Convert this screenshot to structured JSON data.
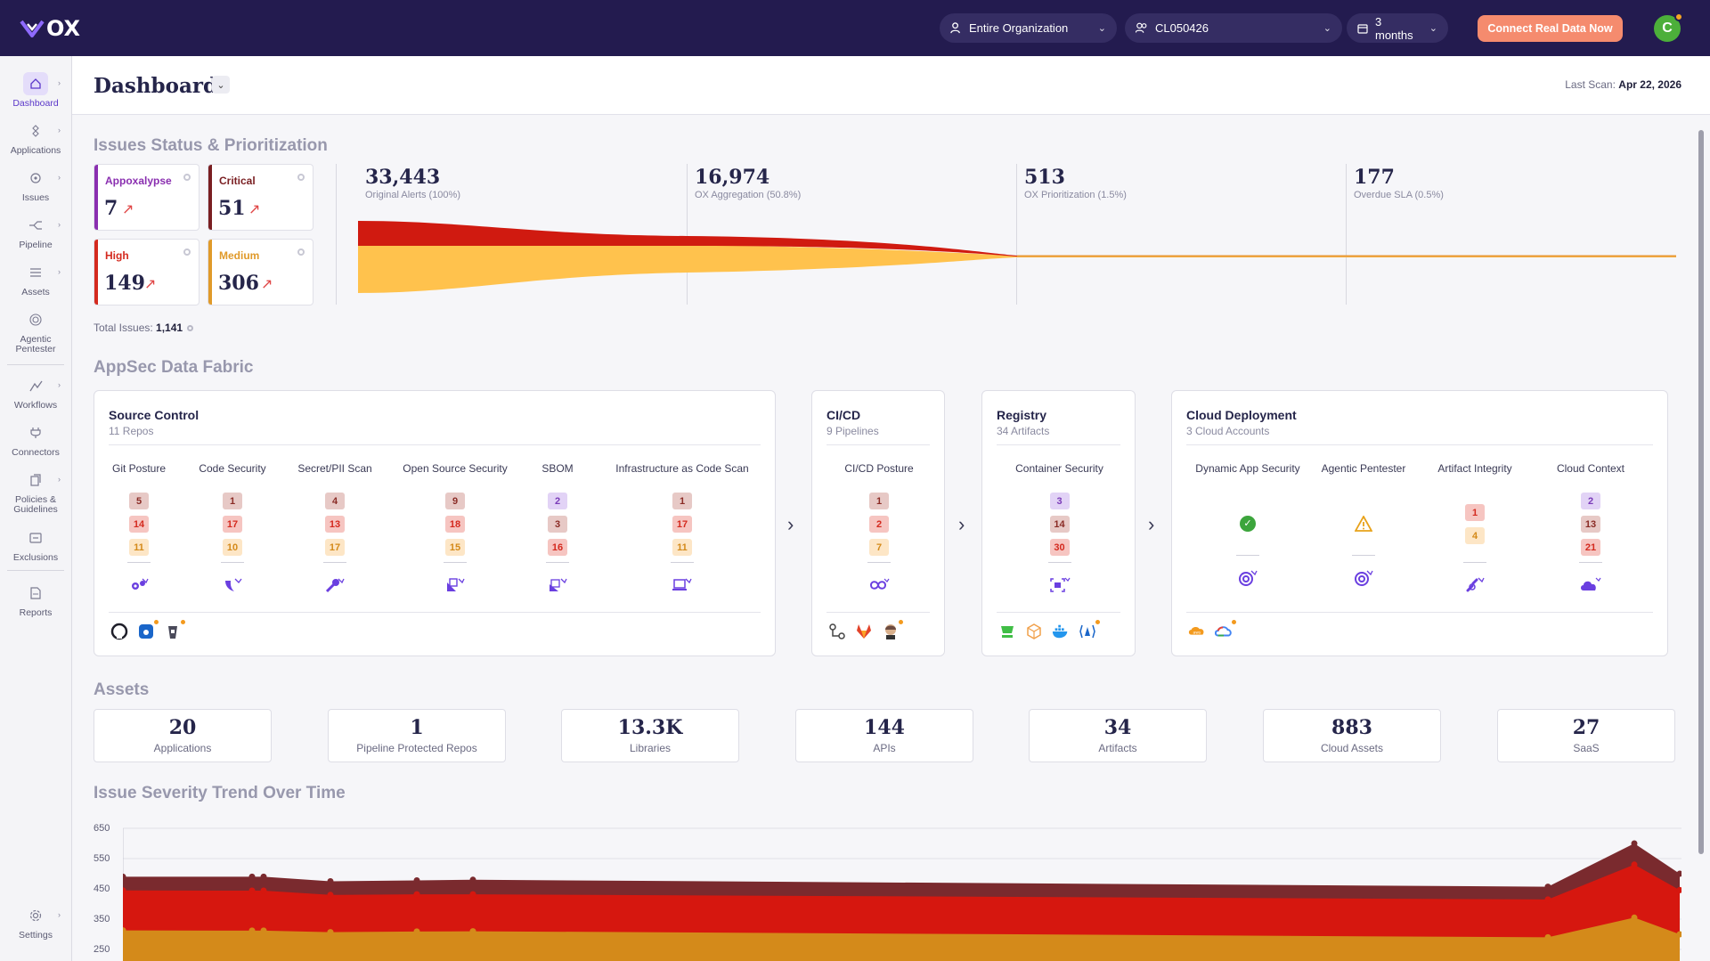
{
  "app": {
    "logo": "OX"
  },
  "topbar": {
    "org_select": "Entire Organization",
    "repo_select": "CL050426",
    "period_select": "3 months",
    "connect_button": "Connect Real Data Now",
    "avatar_initial": "C"
  },
  "sidebar": {
    "items": [
      {
        "label": "Dashboard",
        "icon": "home-icon",
        "active": true
      },
      {
        "label": "Applications",
        "icon": "applications-icon"
      },
      {
        "label": "Issues",
        "icon": "issues-icon"
      },
      {
        "label": "Pipeline",
        "icon": "pipeline-icon"
      },
      {
        "label": "Assets",
        "icon": "assets-icon"
      },
      {
        "label": "Agentic Pentester",
        "icon": "target-icon"
      },
      {
        "label": "Workflows",
        "icon": "workflows-icon"
      },
      {
        "label": "Connectors",
        "icon": "plug-icon"
      },
      {
        "label": "Policies & Guidelines",
        "icon": "policies-icon"
      },
      {
        "label": "Exclusions",
        "icon": "exclusions-icon"
      },
      {
        "label": "Reports",
        "icon": "reports-icon"
      },
      {
        "label": "Settings",
        "icon": "gear-icon"
      }
    ]
  },
  "header": {
    "title": "Dashboard",
    "last_scan_label": "Last Scan:",
    "last_scan_date": "Apr 22, 2026"
  },
  "issues": {
    "section_title": "Issues Status & Prioritization",
    "cards": [
      {
        "name": "Appoxalypse",
        "value": "7",
        "color": "#8a2fb0"
      },
      {
        "name": "Critical",
        "value": "51",
        "color": "#7a1f22"
      },
      {
        "name": "High",
        "value": "149",
        "color": "#d42a1f"
      },
      {
        "name": "Medium",
        "value": "306",
        "color": "#e09a2a"
      }
    ],
    "total_label": "Total Issues:",
    "total_value": "1,141",
    "funnel": [
      {
        "value": "33,443",
        "label": "Original Alerts (100%)"
      },
      {
        "value": "16,974",
        "label": "OX Aggregation (50.8%)"
      },
      {
        "value": "513",
        "label": "OX Prioritization (1.5%)"
      },
      {
        "value": "177",
        "label": "Overdue SLA (0.5%)"
      }
    ]
  },
  "fabric": {
    "section_title": "AppSec Data Fabric",
    "source_control": {
      "title": "Source Control",
      "subtitle": "11 Repos",
      "columns": [
        {
          "label": "Git Posture",
          "counts": [
            "5",
            "14",
            "11"
          ]
        },
        {
          "label": "Code Security",
          "counts": [
            "1",
            "17",
            "10"
          ]
        },
        {
          "label": "Secret/PII Scan",
          "counts": [
            "4",
            "13",
            "17"
          ]
        },
        {
          "label": "Open Source Security",
          "counts": [
            "9",
            "18",
            "15"
          ]
        },
        {
          "label": "SBOM",
          "counts": [
            "2",
            "3",
            "16"
          ]
        },
        {
          "label": "Infrastructure as Code Scan",
          "counts": [
            "1",
            "17",
            "11"
          ]
        }
      ]
    },
    "cicd": {
      "title": "CI/CD",
      "subtitle": "9 Pipelines",
      "columns": [
        {
          "label": "CI/CD Posture",
          "counts": [
            "1",
            "2",
            "7"
          ]
        }
      ]
    },
    "registry": {
      "title": "Registry",
      "subtitle": "34 Artifacts",
      "columns": [
        {
          "label": "Container Security",
          "counts": [
            "3",
            "14",
            "30"
          ]
        }
      ]
    },
    "cloud": {
      "title": "Cloud Deployment",
      "subtitle": "3 Cloud Accounts",
      "columns": [
        {
          "label": "Dynamic App Security",
          "counts": []
        },
        {
          "label": "Agentic Pentester",
          "counts": []
        },
        {
          "label": "Artifact Integrity",
          "counts": [
            "1",
            "4"
          ]
        },
        {
          "label": "Cloud Context",
          "counts": [
            "2",
            "13",
            "21"
          ]
        }
      ]
    }
  },
  "assets": {
    "section_title": "Assets",
    "items": [
      {
        "value": "20",
        "label": "Applications"
      },
      {
        "value": "1",
        "label": "Pipeline Protected Repos"
      },
      {
        "value": "13.3K",
        "label": "Libraries"
      },
      {
        "value": "144",
        "label": "APIs"
      },
      {
        "value": "34",
        "label": "Artifacts"
      },
      {
        "value": "883",
        "label": "Cloud Assets"
      },
      {
        "value": "27",
        "label": "SaaS"
      }
    ]
  },
  "trend": {
    "section_title": "Issue Severity Trend Over Time",
    "y_ticks": [
      "650",
      "550",
      "450",
      "350",
      "250"
    ]
  },
  "chart_data": {
    "type": "area",
    "title": "Issue Severity Trend Over Time",
    "ylim": [
      250,
      650
    ],
    "grid": true,
    "series": [
      {
        "color": "#7a2a2e",
        "values": [
          490,
          490,
          490,
          475,
          478,
          480,
          457,
          600,
          500
        ]
      },
      {
        "color": "#d6170f",
        "values": [
          445,
          444,
          444,
          430,
          432,
          432,
          415,
          530,
          446
        ]
      },
      {
        "color": "#d48a1a",
        "values": [
          313,
          312,
          312,
          307,
          309,
          310,
          290,
          355,
          300
        ]
      }
    ]
  }
}
